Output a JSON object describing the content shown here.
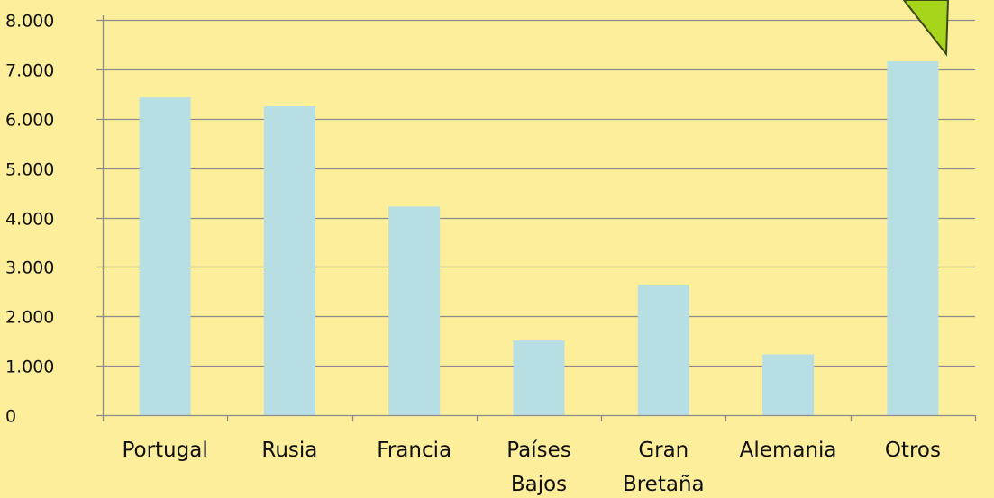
{
  "chart_data": {
    "type": "bar",
    "title": "",
    "xlabel": "",
    "ylabel": "",
    "categories": [
      [
        "Portugal"
      ],
      [
        "Rusia"
      ],
      [
        "Francia"
      ],
      [
        "Países",
        "Bajos"
      ],
      [
        "Gran",
        "Bretaña"
      ],
      [
        "Alemania"
      ],
      [
        "Otros"
      ]
    ],
    "values": [
      6430,
      6250,
      4220,
      1510,
      2640,
      1230,
      7160
    ],
    "ylim": [
      0,
      8000
    ],
    "yticks": [
      0,
      1000,
      2000,
      3000,
      4000,
      5000,
      6000,
      7000,
      8000
    ],
    "ytick_labels": [
      "0",
      "1.000",
      "2.000",
      "3.000",
      "4.000",
      "5.000",
      "6.000",
      "7.000",
      "8.000"
    ],
    "grid": true,
    "legend": "none",
    "colors": {
      "background": "#fcee9b",
      "bar": "#b7dfe3",
      "grid": "#8c8c8c",
      "callout_fill": "#a6d51c",
      "callout_stroke": "#3a4a12"
    }
  }
}
